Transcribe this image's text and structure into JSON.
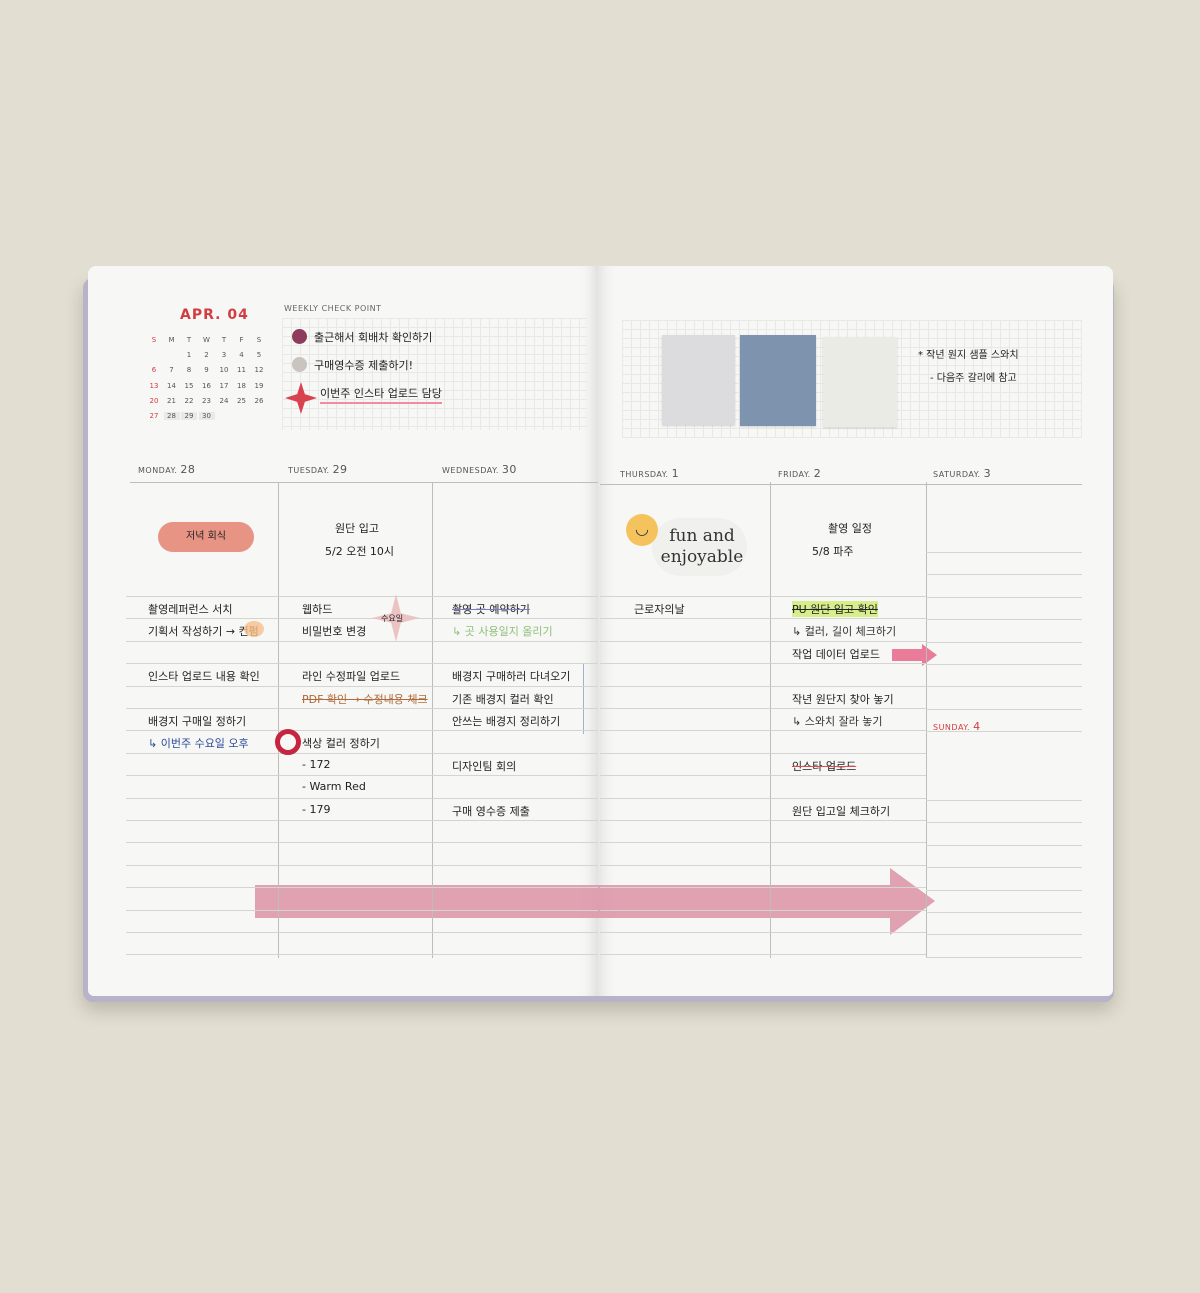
{
  "mini_calendar": {
    "title": "APR. 04",
    "weekdays": [
      "S",
      "M",
      "T",
      "W",
      "T",
      "F",
      "S"
    ],
    "weeks": [
      [
        "",
        "",
        "1",
        "2",
        "3",
        "4",
        "5"
      ],
      [
        "6",
        "7",
        "8",
        "9",
        "10",
        "11",
        "12"
      ],
      [
        "13",
        "14",
        "15",
        "16",
        "17",
        "18",
        "19"
      ],
      [
        "20",
        "21",
        "22",
        "23",
        "24",
        "25",
        "26"
      ],
      [
        "27",
        "28",
        "29",
        "30",
        "",
        "",
        ""
      ]
    ]
  },
  "weekly_check": {
    "label": "WEEKLY CHECK POINT",
    "items": [
      {
        "text": "출근해서 회배차 확인하기",
        "icon": "purple-dot-sticker",
        "color": "#8e3b5e"
      },
      {
        "text": "구매영수증 제출하기!",
        "icon": "gray-dot-sticker",
        "color": "#c9c4c0"
      },
      {
        "text": "이번주 인스타 업로드 담당",
        "icon": "red-star-sticker",
        "color": "#d9434f"
      }
    ]
  },
  "swatches": {
    "colors": [
      "#dcdcdf",
      "#7e93ad",
      "#e9ebe4"
    ],
    "note": [
      "* 작년 원지 샘플 스와치",
      "- 다음주 갈리에 참고"
    ]
  },
  "days": [
    {
      "label": "MONDAY.",
      "num": "28",
      "header": [
        "저녁 회식"
      ],
      "rows": [
        [
          "o",
          "촬영레퍼런스 서치"
        ],
        [
          "v",
          "기획서 작성하기 → 컨펌"
        ],
        [
          "o",
          ""
        ],
        [
          "o",
          "인스타 업로드 내용 확인"
        ],
        [
          "o",
          ""
        ],
        [
          "o",
          "배경지 구매일 정하기"
        ],
        [
          "o",
          "↳ 이번주 수요일 오후"
        ],
        [
          "o",
          ""
        ],
        [
          "o",
          ""
        ],
        [
          "o",
          ""
        ],
        [
          "o",
          ""
        ],
        [
          "o",
          ""
        ],
        [
          "o",
          ""
        ],
        [
          "o",
          ""
        ],
        [
          "o",
          ""
        ],
        [
          "o",
          ""
        ]
      ]
    },
    {
      "label": "TUESDAY.",
      "num": "29",
      "header": [
        "원단 입고",
        "5/2 오전 10시"
      ],
      "sticker": "수요일",
      "rows": [
        [
          "v",
          "웹하드"
        ],
        [
          "o",
          "비밀번호 변경"
        ],
        [
          "o",
          ""
        ],
        [
          "o",
          "라인 수정파일 업로드"
        ],
        [
          "v",
          "PDF 확인 → 수정내용 체크"
        ],
        [
          "o",
          ""
        ],
        [
          "o",
          "색상 컬러 정하기"
        ],
        [
          "o",
          "- 172"
        ],
        [
          "o",
          "- Warm Red"
        ],
        [
          "o",
          "- 179"
        ],
        [
          "o",
          ""
        ],
        [
          "o",
          ""
        ],
        [
          "o",
          ""
        ],
        [
          "o",
          ""
        ],
        [
          "o",
          ""
        ],
        [
          "o",
          ""
        ]
      ]
    },
    {
      "label": "WEDNESDAY.",
      "num": "30",
      "header": [],
      "rows": [
        [
          "v",
          "촬영 곳 예약하기"
        ],
        [
          "o",
          "↳ 곳 사용일지 올리기"
        ],
        [
          "o",
          ""
        ],
        [
          "v",
          "배경지 구매하러 다녀오기"
        ],
        [
          "v",
          "기존 배경지 컬러 확인"
        ],
        [
          "o",
          "안쓰는 배경지 정리하기"
        ],
        [
          "o",
          ""
        ],
        [
          "v",
          "디자인팀 회의"
        ],
        [
          "o",
          ""
        ],
        [
          "o",
          "구매 영수증 제출"
        ],
        [
          "o",
          ""
        ],
        [
          "o",
          ""
        ],
        [
          "o",
          ""
        ],
        [
          "o",
          ""
        ],
        [
          "o",
          ""
        ],
        [
          "o",
          ""
        ]
      ]
    },
    {
      "label": "THURSDAY.",
      "num": "1",
      "header": [],
      "sticker": "fun and enjoyable",
      "rows": [
        [
          "v",
          "근로자의날"
        ],
        [
          "o",
          ""
        ],
        [
          "o",
          ""
        ],
        [
          "o",
          ""
        ],
        [
          "o",
          ""
        ],
        [
          "o",
          ""
        ],
        [
          "o",
          ""
        ],
        [
          "o",
          ""
        ],
        [
          "o",
          ""
        ],
        [
          "o",
          ""
        ],
        [
          "o",
          ""
        ],
        [
          "o",
          ""
        ],
        [
          "o",
          ""
        ],
        [
          "o",
          ""
        ],
        [
          "o",
          ""
        ],
        [
          "o",
          ""
        ]
      ]
    },
    {
      "label": "FRIDAY.",
      "num": "2",
      "header": [
        "촬영 일정",
        "5/8 파주"
      ],
      "rows": [
        [
          "v",
          "PU 원단 입고 확인"
        ],
        [
          "o",
          "↳ 컬러, 길이 체크하기"
        ],
        [
          "o",
          "작업 데이터 업로드"
        ],
        [
          "o",
          ""
        ],
        [
          "o",
          "작년 원단지 찾아 놓기"
        ],
        [
          "o",
          "↳ 스와치 잘라 놓기"
        ],
        [
          "o",
          ""
        ],
        [
          "v",
          "인스타 업로드"
        ],
        [
          "o",
          ""
        ],
        [
          "o",
          "원단 입고일 체크하기"
        ],
        [
          "o",
          ""
        ],
        [
          "o",
          ""
        ],
        [
          "o",
          ""
        ],
        [
          "o",
          ""
        ],
        [
          "o",
          ""
        ],
        [
          "o",
          ""
        ]
      ]
    },
    {
      "label": "SATURDAY.",
      "num": "3",
      "rows": [
        [
          "o",
          ""
        ],
        [
          "o",
          ""
        ],
        [
          "o",
          ""
        ],
        [
          "o",
          ""
        ],
        [
          "o",
          ""
        ],
        [
          "o",
          ""
        ],
        [
          "o",
          ""
        ]
      ]
    },
    {
      "label": "SUNDAY.",
      "num": "4",
      "rows": [
        [
          "o",
          ""
        ],
        [
          "o",
          ""
        ],
        [
          "o",
          ""
        ],
        [
          "o",
          ""
        ],
        [
          "o",
          ""
        ],
        [
          "o",
          ""
        ],
        [
          "o",
          ""
        ]
      ]
    }
  ],
  "colors": {
    "background": "#e2ded1",
    "accent_red": "#d23c43",
    "arrow_pink": "#dd98aa",
    "cover": "#b8b3c9"
  }
}
